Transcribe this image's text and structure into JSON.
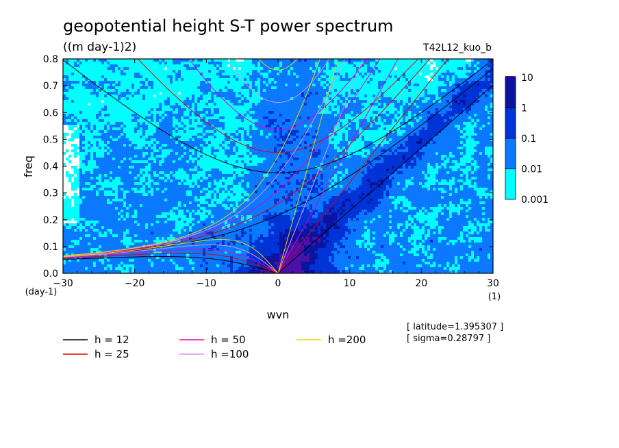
{
  "chart_data": {
    "type": "heatmap",
    "title": "geopotential height S-T power spectrum",
    "subtitle": "((m day-1)2)",
    "run_label": "T42L12_kuo_b",
    "xlabel": "wvn",
    "ylabel": "freq",
    "x_unit": "(1)",
    "y_unit": "(day-1)",
    "xlim": [
      -30,
      30
    ],
    "ylim": [
      0,
      0.8
    ],
    "xticks": [
      -30,
      -20,
      -10,
      0,
      10,
      20,
      30
    ],
    "yticks": [
      0.0,
      0.1,
      0.2,
      0.3,
      0.4,
      0.5,
      0.6,
      0.7,
      0.8
    ],
    "ytick_labels": [
      "0.0",
      "0.1",
      "0.2",
      "0.3",
      "0.4",
      "0.5",
      "0.6",
      "0.7",
      "0.8"
    ],
    "colorbar": {
      "levels": [
        "0.001",
        "0.01",
        "0.1",
        "1",
        "10"
      ],
      "colors": [
        "#00ffff",
        "#0a78ff",
        "#0033d6",
        "#0a14a0",
        "#4a10a8"
      ]
    },
    "dispersion_curves": {
      "series": [
        {
          "name": "h = 12",
          "h": 12,
          "color": "#000000"
        },
        {
          "name": "h = 25",
          "h": 25,
          "color": "#e00000"
        },
        {
          "name": "h = 50",
          "h": 50,
          "color": "#e000c8"
        },
        {
          "name": "h =100",
          "h": 100,
          "color": "#e090e8"
        },
        {
          "name": "h =200",
          "h": 200,
          "color": "#e8d800"
        }
      ]
    },
    "info": {
      "latitude": "[ latitude=1.395307 ]",
      "sigma": "[ sigma=0.28797 ]"
    }
  }
}
